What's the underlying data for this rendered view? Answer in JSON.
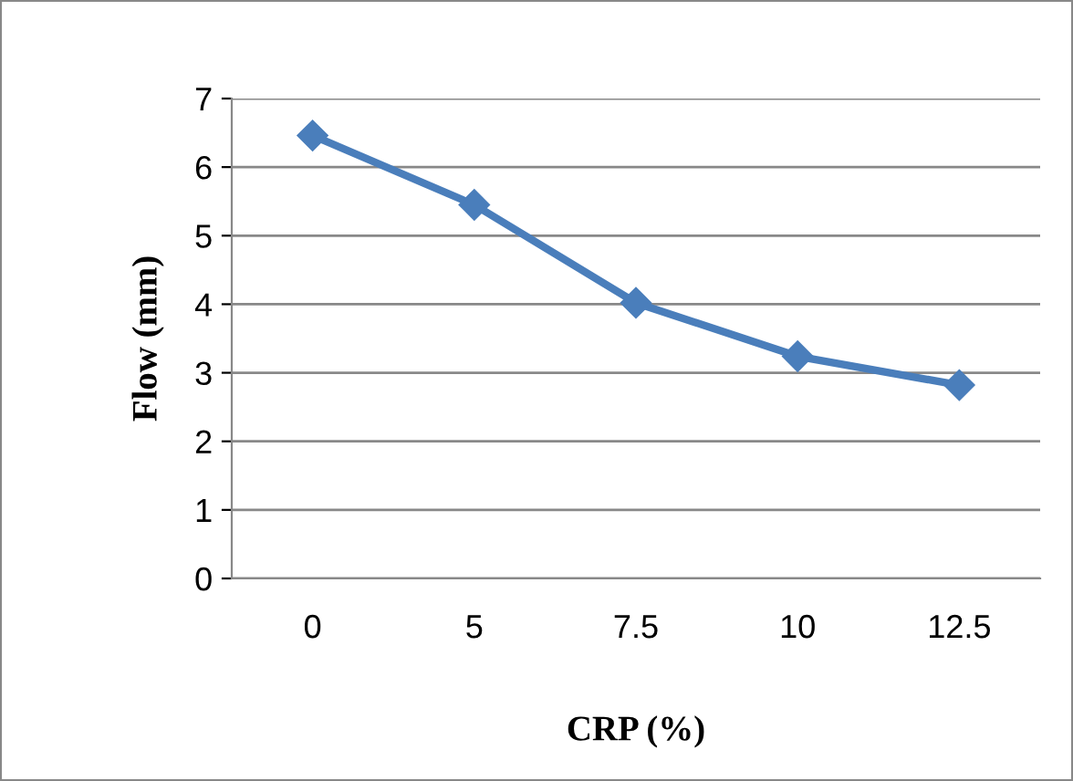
{
  "chart_data": {
    "type": "line",
    "xlabel": "CRP (%)",
    "ylabel": "Flow (mm)",
    "categories": [
      "0",
      "5",
      "7.5",
      "10",
      "12.5"
    ],
    "series": [
      {
        "color": "#4a7ebb",
        "values": [
          6.46,
          5.45,
          4.02,
          3.24,
          2.82
        ]
      }
    ],
    "ylim": [
      0,
      7
    ],
    "yticks": [
      0,
      1,
      2,
      3,
      4,
      5,
      6,
      7
    ],
    "grid": "y",
    "marker": "diamond",
    "line_style": "solid",
    "legend": false
  }
}
